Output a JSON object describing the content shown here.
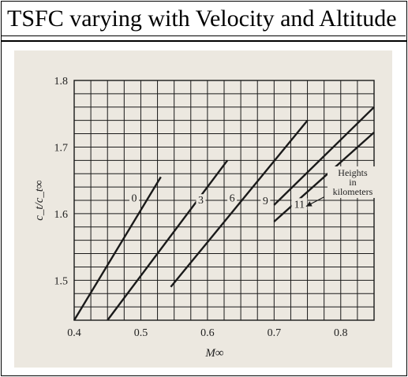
{
  "title": "TSFC varying with Velocity and Altitude",
  "chart_data": {
    "type": "line",
    "xlabel": "M∞",
    "ylabel": "c_t/c_t∞",
    "xlim": [
      0.4,
      0.85
    ],
    "ylim": [
      1.44,
      1.8
    ],
    "xticks": [
      {
        "value": 0.4,
        "label": "0.4"
      },
      {
        "value": 0.5,
        "label": "0.5"
      },
      {
        "value": 0.6,
        "label": "0.6"
      },
      {
        "value": 0.7,
        "label": "0.7"
      },
      {
        "value": 0.8,
        "label": "0.8"
      }
    ],
    "yticks": [
      {
        "value": 1.5,
        "label": "1.5"
      },
      {
        "value": 1.6,
        "label": "1.6"
      },
      {
        "value": 1.7,
        "label": "1.7"
      },
      {
        "value": 1.8,
        "label": "1.8"
      }
    ],
    "grid": true,
    "series": [
      {
        "name": "0",
        "x": [
          0.4,
          0.53
        ],
        "y": [
          1.44,
          1.655
        ]
      },
      {
        "name": "3",
        "x": [
          0.45,
          0.63
        ],
        "y": [
          1.44,
          1.68
        ]
      },
      {
        "name": "6",
        "x": [
          0.545,
          0.75
        ],
        "y": [
          1.49,
          1.74
        ]
      },
      {
        "name": "9",
        "x": [
          0.7,
          0.85
        ],
        "y": [
          1.613,
          1.76
        ]
      },
      {
        "name": "11",
        "x": [
          0.7,
          0.85
        ],
        "y": [
          1.588,
          1.722
        ]
      }
    ],
    "series_labels": [
      {
        "text": "0",
        "x": 0.49,
        "y": 1.618
      },
      {
        "text": "3",
        "x": 0.59,
        "y": 1.615
      },
      {
        "text": "6",
        "x": 0.637,
        "y": 1.618
      },
      {
        "text": "9",
        "x": 0.687,
        "y": 1.614
      },
      {
        "text": "11",
        "x": 0.738,
        "y": 1.609
      }
    ],
    "annotation": {
      "lines": [
        "Heights",
        "in",
        "kilometers"
      ],
      "x": 0.818,
      "y": 1.652,
      "arrow_from": {
        "x": 0.775,
        "y": 1.625
      },
      "arrow_to": {
        "x": 0.748,
        "y": 1.611
      }
    },
    "colors": {
      "line": "#1a1a1a",
      "grid": "#1a1a1a",
      "background": "#ece8e0"
    }
  }
}
